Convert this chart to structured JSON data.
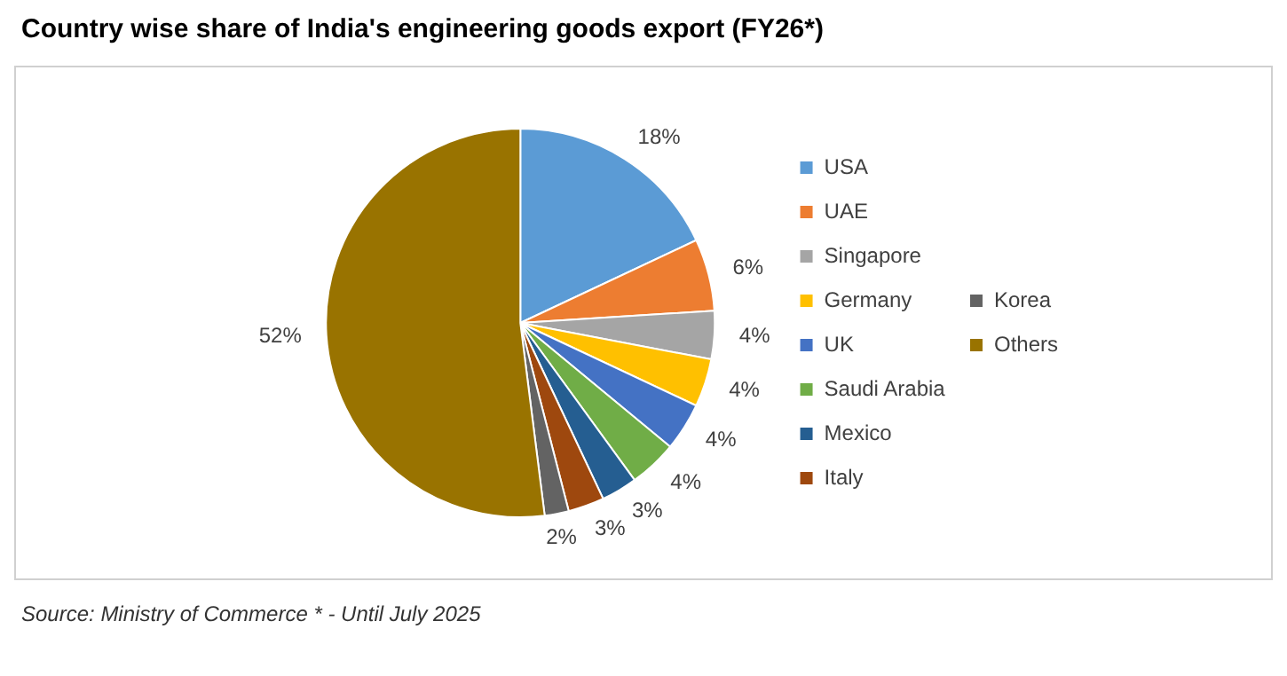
{
  "chart_data": {
    "type": "pie",
    "title": "Country wise share of India's engineering goods export (FY26*)",
    "categories": [
      "USA",
      "UAE",
      "Singapore",
      "Germany",
      "UK",
      "Saudi Arabia",
      "Mexico",
      "Italy",
      "Korea",
      "Others"
    ],
    "values": [
      18,
      6,
      4,
      4,
      4,
      4,
      3,
      3,
      2,
      52
    ],
    "value_labels": [
      "18%",
      "6%",
      "4%",
      "4%",
      "4%",
      "4%",
      "3%",
      "3%",
      "2%",
      "52%"
    ],
    "colors": [
      "#5b9bd5",
      "#ed7d31",
      "#a5a5a5",
      "#ffc000",
      "#4472c4",
      "#70ad47",
      "#255e91",
      "#9e480e",
      "#636363",
      "#997300"
    ],
    "legend": "right",
    "annotations": [
      "Source: Ministry of Commerce * - Until July 2025"
    ]
  }
}
